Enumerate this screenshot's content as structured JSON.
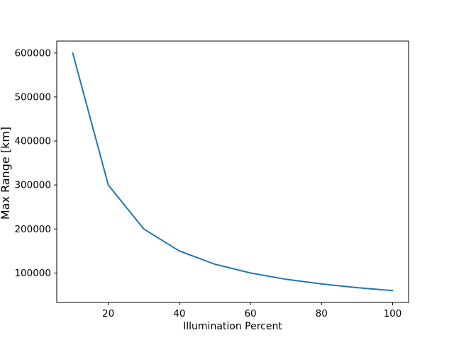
{
  "chart_data": {
    "type": "line",
    "xlabel": "Illumination Percent",
    "ylabel": "Max Range [km]",
    "x": [
      10,
      20,
      30,
      40,
      50,
      60,
      70,
      80,
      90,
      100
    ],
    "series": [
      {
        "name": "max_range",
        "color": "#1f77b4",
        "values": [
          600000,
          300000,
          200000,
          150000,
          120000,
          100000,
          85714,
          75000,
          66667,
          60000
        ]
      }
    ],
    "x_ticks": [
      20,
      40,
      60,
      80,
      100
    ],
    "y_ticks": [
      100000,
      200000,
      300000,
      400000,
      500000,
      600000
    ],
    "xlim": [
      5.5,
      104.5
    ],
    "ylim": [
      33000,
      627000
    ],
    "grid": false,
    "axis_color": "#000000",
    "background_color": "#ffffff"
  }
}
